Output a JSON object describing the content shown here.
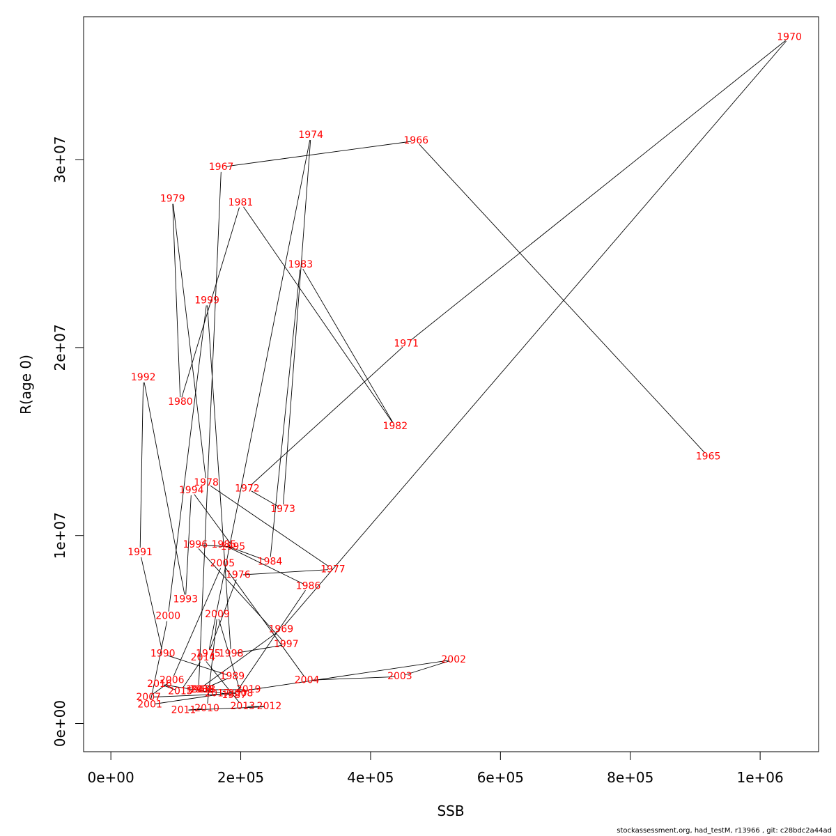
{
  "chart_data": {
    "type": "line",
    "xlabel": "SSB",
    "ylabel": "R(age 0)",
    "xlim": [
      -42000,
      1090000
    ],
    "ylim": [
      -1500000,
      37600000
    ],
    "xticks": [
      0,
      200000,
      400000,
      600000,
      800000,
      1000000
    ],
    "xtick_labels": [
      "0e+00",
      "2e+05",
      "4e+05",
      "6e+05",
      "8e+05",
      "1e+06"
    ],
    "yticks": [
      0,
      10000000,
      20000000,
      30000000
    ],
    "ytick_labels": [
      "0e+00",
      "1e+07",
      "2e+07",
      "3e+07"
    ],
    "grid": false,
    "legend": "none",
    "line_color": "#000000",
    "label_color": "#ff0000",
    "points": [
      {
        "label": "1965",
        "x": 920000,
        "y": 14200000
      },
      {
        "label": "1966",
        "x": 470000,
        "y": 31000000
      },
      {
        "label": "1967",
        "x": 170000,
        "y": 29600000
      },
      {
        "label": "1968",
        "x": 135000,
        "y": 1800000
      },
      {
        "label": "1969",
        "x": 262000,
        "y": 5000000
      },
      {
        "label": "1970",
        "x": 1045000,
        "y": 36500000
      },
      {
        "label": "1971",
        "x": 455000,
        "y": 20200000
      },
      {
        "label": "1972",
        "x": 210000,
        "y": 12500000
      },
      {
        "label": "1973",
        "x": 265000,
        "y": 11400000
      },
      {
        "label": "1974",
        "x": 308000,
        "y": 31300000
      },
      {
        "label": "1975",
        "x": 150000,
        "y": 3700000
      },
      {
        "label": "1976",
        "x": 196000,
        "y": 7900000
      },
      {
        "label": "1977",
        "x": 342000,
        "y": 8200000
      },
      {
        "label": "1978",
        "x": 147000,
        "y": 12800000
      },
      {
        "label": "1979",
        "x": 95000,
        "y": 27900000
      },
      {
        "label": "1980",
        "x": 107000,
        "y": 17100000
      },
      {
        "label": "1981",
        "x": 200000,
        "y": 27700000
      },
      {
        "label": "1982",
        "x": 438000,
        "y": 15800000
      },
      {
        "label": "1983",
        "x": 292000,
        "y": 24400000
      },
      {
        "label": "1984",
        "x": 245000,
        "y": 8600000
      },
      {
        "label": "1985",
        "x": 174000,
        "y": 9500000
      },
      {
        "label": "1986",
        "x": 304000,
        "y": 7300000
      },
      {
        "label": "1987",
        "x": 190000,
        "y": 1500000
      },
      {
        "label": "1988",
        "x": 140000,
        "y": 1800000
      },
      {
        "label": "1989",
        "x": 187000,
        "y": 2500000
      },
      {
        "label": "1990",
        "x": 80000,
        "y": 3700000
      },
      {
        "label": "1991",
        "x": 45000,
        "y": 9100000
      },
      {
        "label": "1992",
        "x": 50000,
        "y": 18400000
      },
      {
        "label": "1993",
        "x": 115000,
        "y": 6600000
      },
      {
        "label": "1994",
        "x": 124000,
        "y": 12400000
      },
      {
        "label": "1995",
        "x": 188000,
        "y": 9400000
      },
      {
        "label": "1996",
        "x": 130000,
        "y": 9500000
      },
      {
        "label": "1997",
        "x": 270000,
        "y": 4200000
      },
      {
        "label": "1998",
        "x": 185000,
        "y": 3700000
      },
      {
        "label": "1999",
        "x": 148000,
        "y": 22500000
      },
      {
        "label": "2000",
        "x": 88000,
        "y": 5700000
      },
      {
        "label": "2001",
        "x": 60000,
        "y": 1000000
      },
      {
        "label": "2002",
        "x": 528000,
        "y": 3400000
      },
      {
        "label": "2003",
        "x": 445000,
        "y": 2500000
      },
      {
        "label": "2004",
        "x": 302000,
        "y": 2300000
      },
      {
        "label": "2005",
        "x": 172000,
        "y": 8500000
      },
      {
        "label": "2006",
        "x": 94000,
        "y": 2300000
      },
      {
        "label": "2007",
        "x": 58000,
        "y": 1400000
      },
      {
        "label": "2008",
        "x": 200000,
        "y": 1600000
      },
      {
        "label": "2009",
        "x": 164000,
        "y": 5800000
      },
      {
        "label": "2010",
        "x": 148000,
        "y": 800000
      },
      {
        "label": "2011",
        "x": 112000,
        "y": 700000
      },
      {
        "label": "2012",
        "x": 244000,
        "y": 900000
      },
      {
        "label": "2013",
        "x": 203000,
        "y": 900000
      },
      {
        "label": "2014",
        "x": 142000,
        "y": 3500000
      },
      {
        "label": "2015",
        "x": 107000,
        "y": 1700000
      },
      {
        "label": "2016",
        "x": 75000,
        "y": 2100000
      },
      {
        "label": "2017",
        "x": 164000,
        "y": 1600000
      },
      {
        "label": "2018",
        "x": 142000,
        "y": 1800000
      },
      {
        "label": "2019",
        "x": 212000,
        "y": 1800000
      }
    ]
  },
  "footer": "stockassessment.org, had_testM, r13966 , git: c28bdc2a44ad"
}
